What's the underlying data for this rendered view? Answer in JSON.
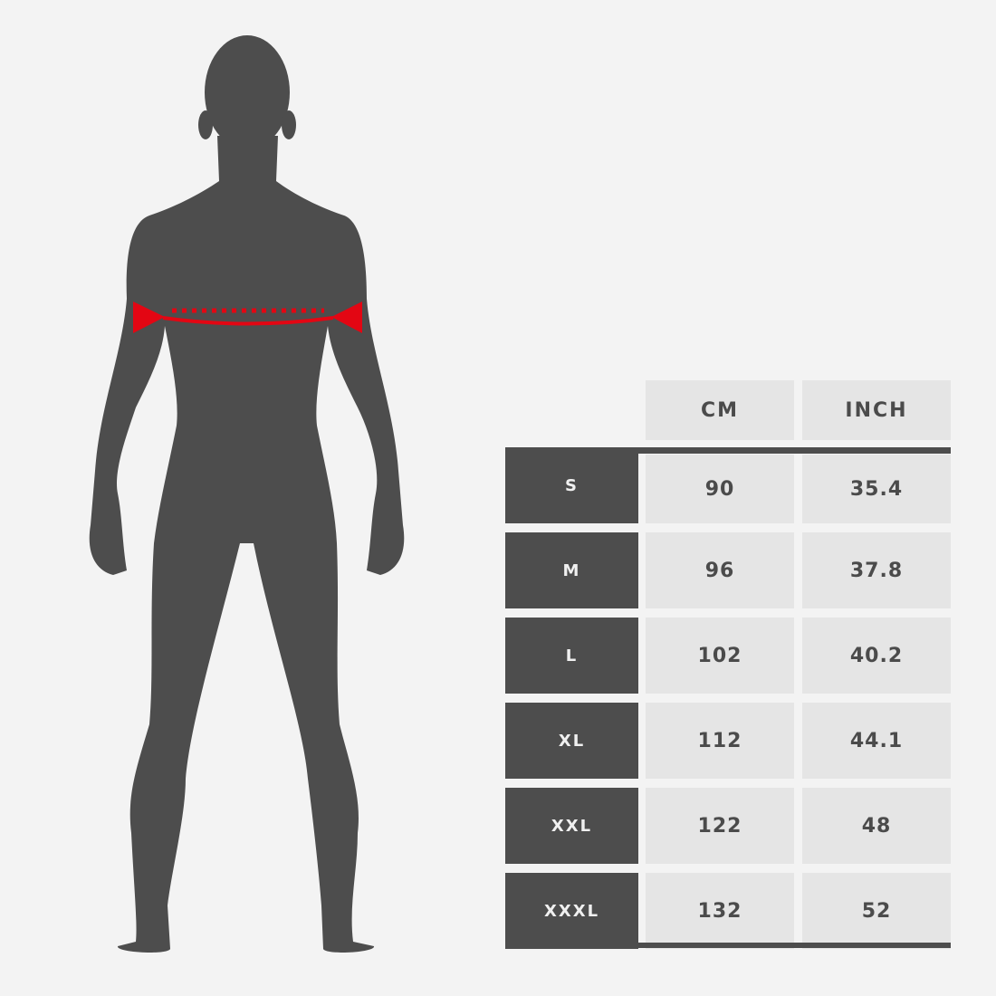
{
  "colors": {
    "background": "#f3f3f3",
    "silhouette": "#4d4d4d",
    "measure": "#e30613",
    "cell": "#e5e5e5",
    "size_cell": "#4d4d4d"
  },
  "figure": {
    "measurement": "chest"
  },
  "table": {
    "headers": [
      "CM",
      "INCH"
    ],
    "rows": [
      {
        "size": "S",
        "cm": "90",
        "inch": "35.4"
      },
      {
        "size": "M",
        "cm": "96",
        "inch": "37.8"
      },
      {
        "size": "L",
        "cm": "102",
        "inch": "40.2"
      },
      {
        "size": "XL",
        "cm": "112",
        "inch": "44.1"
      },
      {
        "size": "XXL",
        "cm": "122",
        "inch": "48"
      },
      {
        "size": "XXXL",
        "cm": "132",
        "inch": "52"
      }
    ]
  }
}
